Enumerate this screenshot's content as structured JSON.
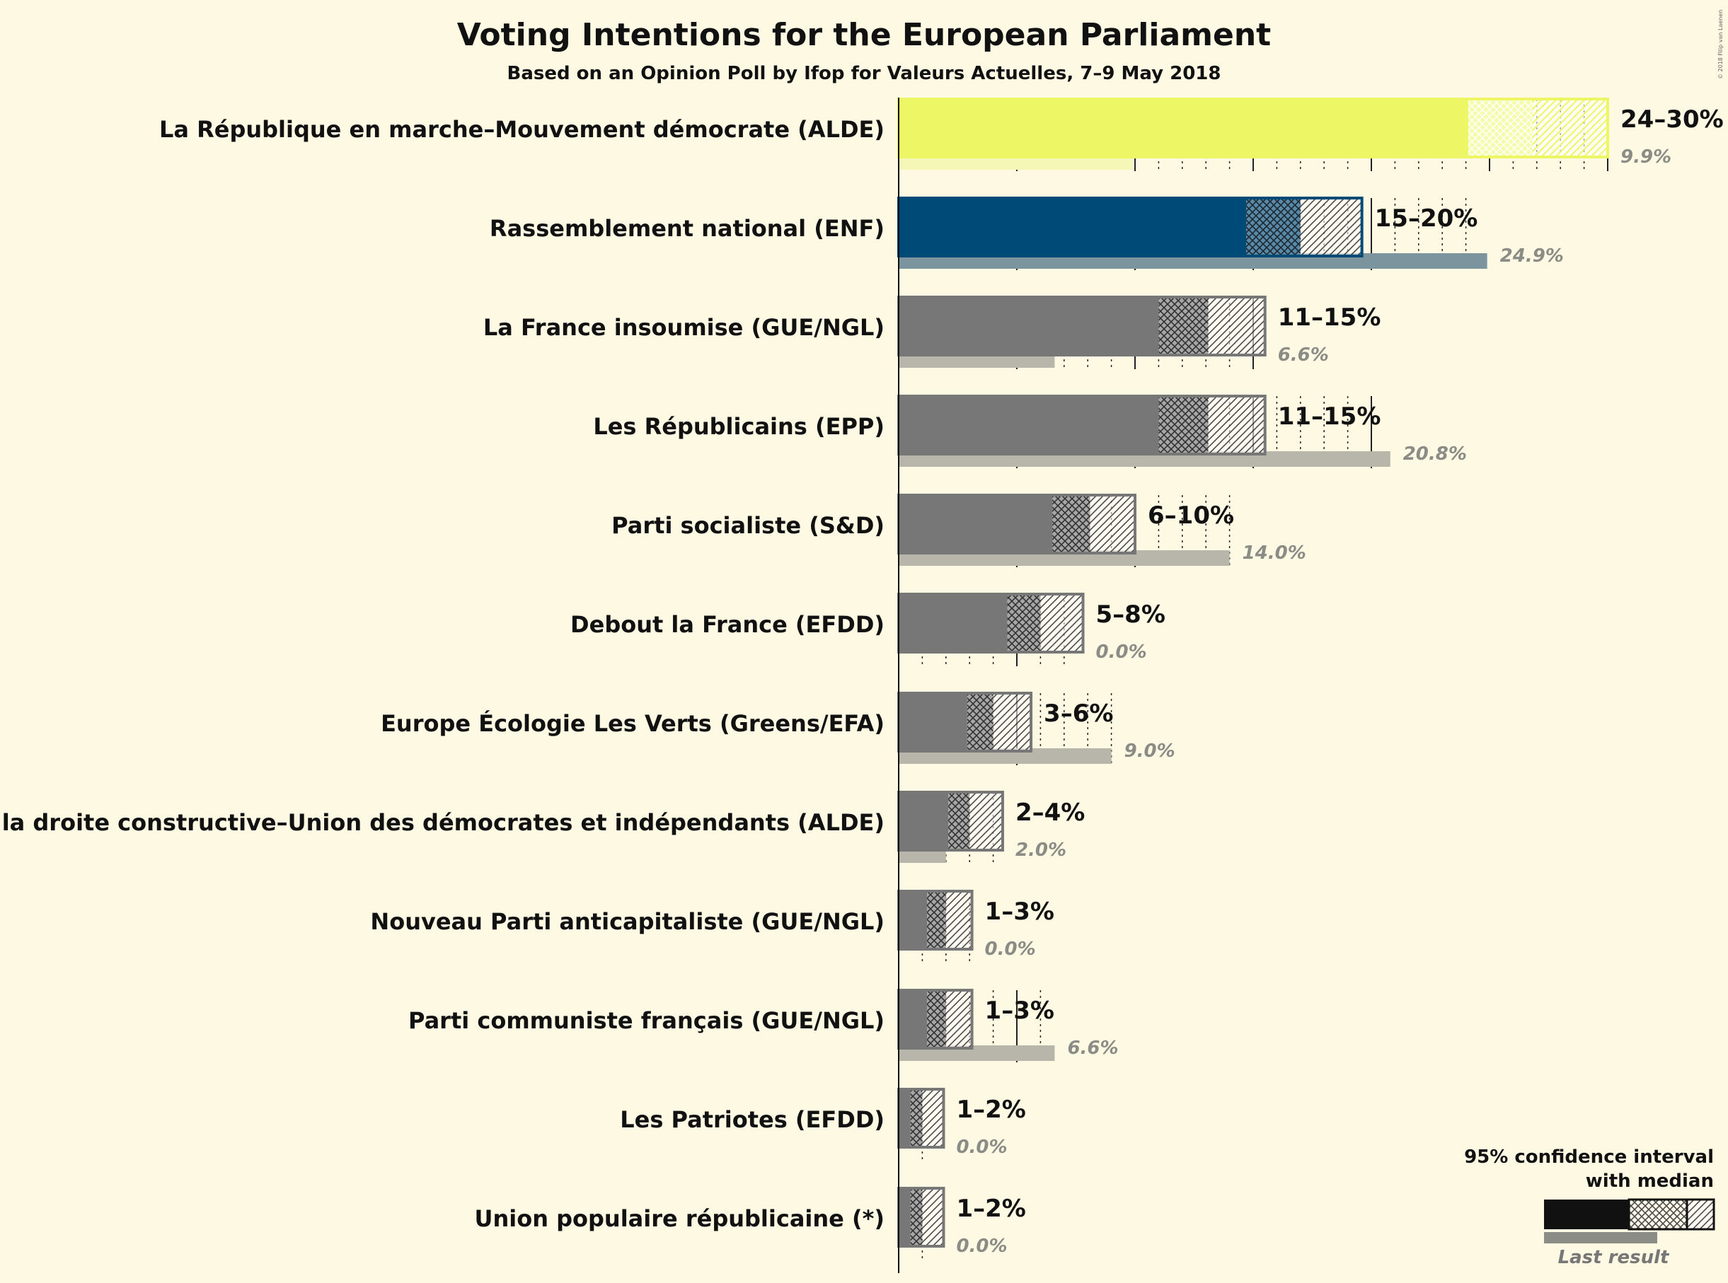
{
  "title": "Voting Intentions for the European Parliament",
  "subtitle": "Based on an Opinion Poll by Ifop for Valeurs Actuelles, 7–9 May 2018",
  "copyright": "© 2018 Filip van Laenen",
  "legend": {
    "title_line1": "95% confidence interval",
    "title_line2": "with median",
    "last_result": "Last result"
  },
  "colors": {
    "background": "#fdf9e3",
    "default_bar": "#777777",
    "default_last": "#b8b6ab"
  },
  "chart_data": {
    "type": "bar",
    "orientation": "horizontal",
    "x_unit": "%",
    "xlim": [
      0,
      30
    ],
    "title": "Voting Intentions for the European Parliament",
    "subtitle": "Based on an Opinion Poll by Ifop for Valeurs Actuelles, 7–9 May 2018",
    "series_meaning": [
      "95% confidence interval with median",
      "Last result"
    ],
    "parties": [
      {
        "name": "La République en marche–Mouvement démocrate (ALDE)",
        "low": 24.1,
        "median": 26.8,
        "high": 30.0,
        "range_label": "24–30%",
        "last": 9.9,
        "last_label": "9.9%",
        "color": "#edf766",
        "last_color": "#f5f7b7"
      },
      {
        "name": "Rassemblement national (ENF)",
        "low": 14.7,
        "median": 17.0,
        "high": 19.6,
        "range_label": "15–20%",
        "last": 24.9,
        "last_label": "24.9%",
        "color": "#004a77",
        "last_color": "#7c949e"
      },
      {
        "name": "La France insoumise (GUE/NGL)",
        "low": 11.0,
        "median": 13.1,
        "high": 15.5,
        "range_label": "11–15%",
        "last": 6.6,
        "last_label": "6.6%",
        "color": "#777777",
        "last_color": "#b8b6ab"
      },
      {
        "name": "Les Républicains (EPP)",
        "low": 11.0,
        "median": 13.1,
        "high": 15.5,
        "range_label": "11–15%",
        "last": 20.8,
        "last_label": "20.8%",
        "color": "#777777",
        "last_color": "#b8b6ab"
      },
      {
        "name": "Parti socialiste (S&D)",
        "low": 6.5,
        "median": 8.1,
        "high": 10.0,
        "range_label": "6–10%",
        "last": 14.0,
        "last_label": "14.0%",
        "color": "#777777",
        "last_color": "#b8b6ab"
      },
      {
        "name": "Debout la France (EFDD)",
        "low": 4.6,
        "median": 6.0,
        "high": 7.8,
        "range_label": "5–8%",
        "last": 0.0,
        "last_label": "0.0%",
        "color": "#777777",
        "last_color": "#b8b6ab"
      },
      {
        "name": "Europe Écologie Les Verts (Greens/EFA)",
        "low": 2.9,
        "median": 4.0,
        "high": 5.6,
        "range_label": "3–6%",
        "last": 9.0,
        "last_label": "9.0%",
        "color": "#777777",
        "last_color": "#b8b6ab"
      },
      {
        "name": "Agir, la droite constructive–Union des démocrates et indépendants (ALDE)",
        "low": 2.1,
        "median": 3.0,
        "high": 4.4,
        "range_label": "2–4%",
        "last": 2.0,
        "last_label": "2.0%",
        "color": "#777777",
        "last_color": "#b8b6ab"
      },
      {
        "name": "Nouveau Parti anticapitaliste (GUE/NGL)",
        "low": 1.2,
        "median": 2.0,
        "high": 3.1,
        "range_label": "1–3%",
        "last": 0.0,
        "last_label": "0.0%",
        "color": "#777777",
        "last_color": "#b8b6ab"
      },
      {
        "name": "Parti communiste français (GUE/NGL)",
        "low": 1.2,
        "median": 2.0,
        "high": 3.1,
        "range_label": "1–3%",
        "last": 6.6,
        "last_label": "6.6%",
        "color": "#777777",
        "last_color": "#b8b6ab"
      },
      {
        "name": "Les Patriotes (EFDD)",
        "low": 0.5,
        "median": 1.0,
        "high": 1.9,
        "range_label": "1–2%",
        "last": 0.0,
        "last_label": "0.0%",
        "color": "#777777",
        "last_color": "#b8b6ab"
      },
      {
        "name": "Union populaire républicaine (*)",
        "low": 0.5,
        "median": 1.0,
        "high": 1.9,
        "range_label": "1–2%",
        "last": 0.0,
        "last_label": "0.0%",
        "color": "#777777",
        "last_color": "#b8b6ab"
      }
    ]
  }
}
